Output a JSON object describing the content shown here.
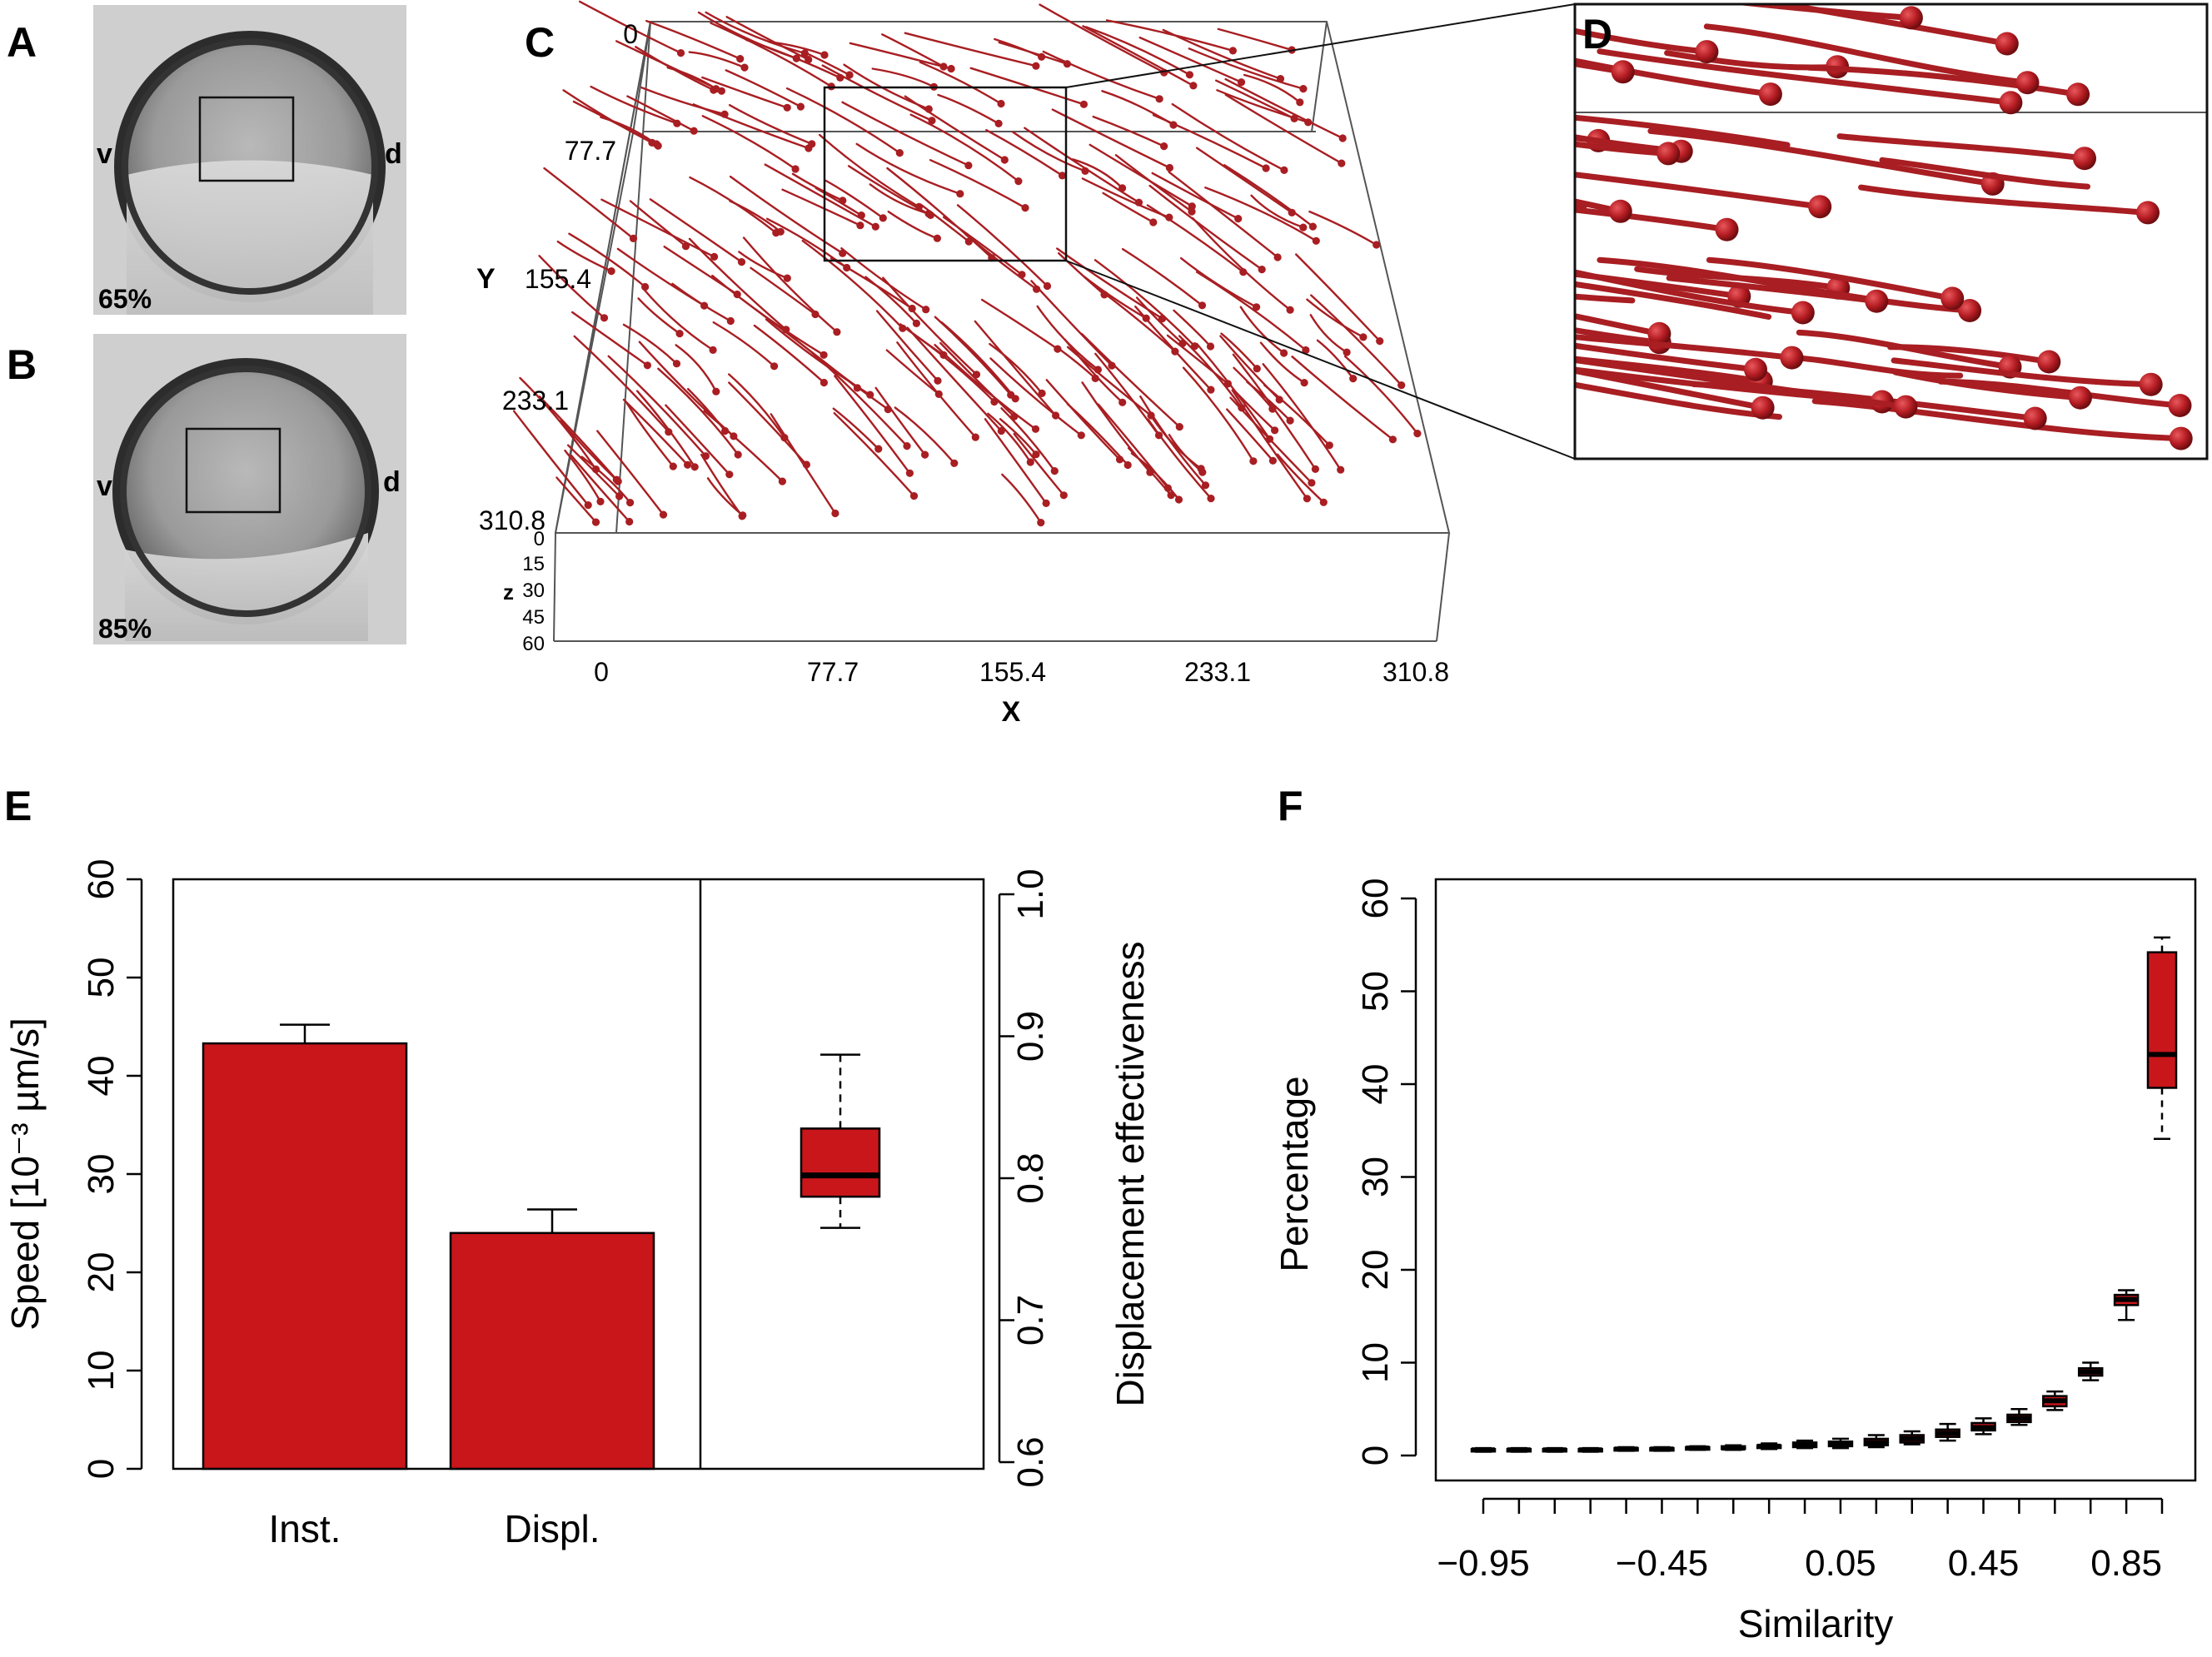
{
  "colors": {
    "track": "#a81e22",
    "bar": "#c8161b",
    "box": "#c8161b",
    "axis": "#000000"
  },
  "panels": {
    "A": {
      "letter": "A",
      "stage": "65%",
      "ventral": "v",
      "dorsal": "d"
    },
    "B": {
      "letter": "B",
      "stage": "85%",
      "ventral": "v",
      "dorsal": "d"
    },
    "C": {
      "letter": "C"
    },
    "D": {
      "letter": "D"
    },
    "E": {
      "letter": "E"
    },
    "F": {
      "letter": "F"
    }
  },
  "chart_data": [
    {
      "panel": "C",
      "type": "scatter",
      "title": "",
      "xlabel": "X",
      "ylabel": "Y",
      "zlabel": "z",
      "x_ticks": [
        "0",
        "77.7",
        "155.4",
        "233.1",
        "310.8"
      ],
      "y_ticks": [
        "0",
        "77.7",
        "155.4",
        "233.1",
        "310.8"
      ],
      "z_ticks": [
        "0",
        "15",
        "30",
        "45",
        "60"
      ],
      "xlim": [
        0,
        310.8
      ],
      "ylim": [
        0,
        310.8
      ],
      "zlim": [
        0,
        60
      ]
    },
    {
      "panel": "E",
      "type": "bar",
      "categories": [
        "Inst.",
        "Displ."
      ],
      "values": [
        43.3,
        24.0
      ],
      "errors": [
        1.9,
        2.4
      ],
      "ylabel": "Speed [10⁻³ µm/s]",
      "ylim": [
        0,
        60
      ],
      "y_ticks": [
        "0",
        "10",
        "20",
        "30",
        "40",
        "50",
        "60"
      ],
      "secondary": {
        "type": "box",
        "ylabel": "Displacement effectiveness",
        "ylim": [
          0.6,
          1.0
        ],
        "y_ticks": [
          "0.6",
          "0.7",
          "0.8",
          "0.9",
          "1.0"
        ],
        "box": {
          "min": 0.765,
          "q1": 0.787,
          "median": 0.802,
          "q3": 0.835,
          "max": 0.887
        }
      }
    },
    {
      "panel": "F",
      "type": "box",
      "xlabel": "Similarity",
      "ylabel": "Percentage",
      "ylim": [
        0,
        60
      ],
      "y_ticks": [
        "0",
        "10",
        "20",
        "30",
        "40",
        "50",
        "60"
      ],
      "x_tick_labels": [
        "−0.95",
        "−0.45",
        "0.05",
        "0.45",
        "0.85"
      ],
      "x": [
        -0.95,
        -0.85,
        -0.75,
        -0.65,
        -0.55,
        -0.45,
        -0.35,
        -0.25,
        -0.15,
        -0.05,
        0.05,
        0.15,
        0.25,
        0.35,
        0.45,
        0.55,
        0.65,
        0.75,
        0.85,
        0.95
      ],
      "boxes": [
        {
          "min": 0.4,
          "q1": 0.5,
          "median": 0.6,
          "q3": 0.7,
          "max": 0.8
        },
        {
          "min": 0.4,
          "q1": 0.5,
          "median": 0.6,
          "q3": 0.7,
          "max": 0.8
        },
        {
          "min": 0.4,
          "q1": 0.5,
          "median": 0.6,
          "q3": 0.7,
          "max": 0.8
        },
        {
          "min": 0.4,
          "q1": 0.5,
          "median": 0.6,
          "q3": 0.7,
          "max": 0.8
        },
        {
          "min": 0.5,
          "q1": 0.6,
          "median": 0.7,
          "q3": 0.8,
          "max": 0.9
        },
        {
          "min": 0.5,
          "q1": 0.6,
          "median": 0.7,
          "q3": 0.8,
          "max": 0.9
        },
        {
          "min": 0.6,
          "q1": 0.7,
          "median": 0.8,
          "q3": 0.9,
          "max": 1.0
        },
        {
          "min": 0.6,
          "q1": 0.7,
          "median": 0.8,
          "q3": 1.0,
          "max": 1.1
        },
        {
          "min": 0.7,
          "q1": 0.8,
          "median": 1.0,
          "q3": 1.1,
          "max": 1.3
        },
        {
          "min": 0.8,
          "q1": 0.9,
          "median": 1.1,
          "q3": 1.4,
          "max": 1.6
        },
        {
          "min": 0.8,
          "q1": 1.0,
          "median": 1.2,
          "q3": 1.5,
          "max": 1.8
        },
        {
          "min": 0.9,
          "q1": 1.1,
          "median": 1.4,
          "q3": 1.8,
          "max": 2.2
        },
        {
          "min": 1.2,
          "q1": 1.4,
          "median": 1.8,
          "q3": 2.2,
          "max": 2.6
        },
        {
          "min": 1.6,
          "q1": 2.0,
          "median": 2.4,
          "q3": 2.8,
          "max": 3.4
        },
        {
          "min": 2.3,
          "q1": 2.7,
          "median": 3.0,
          "q3": 3.5,
          "max": 4.0
        },
        {
          "min": 3.3,
          "q1": 3.6,
          "median": 4.0,
          "q3": 4.4,
          "max": 5.0
        },
        {
          "min": 4.9,
          "q1": 5.3,
          "median": 5.9,
          "q3": 6.4,
          "max": 6.9
        },
        {
          "min": 8.1,
          "q1": 8.6,
          "median": 9.0,
          "q3": 9.4,
          "max": 10.0
        },
        {
          "min": 14.6,
          "q1": 16.2,
          "median": 16.8,
          "q3": 17.3,
          "max": 17.8
        },
        {
          "min": 34.1,
          "q1": 39.6,
          "median": 43.2,
          "q3": 54.2,
          "max": 55.8
        }
      ]
    }
  ]
}
